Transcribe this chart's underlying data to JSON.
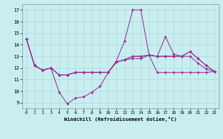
{
  "xlabel": "Windchill (Refroidissement éolien,°C)",
  "bg_color": "#c8eef0",
  "line_color": "#993399",
  "grid_color": "#b0d8d8",
  "x_ticks": [
    0,
    1,
    2,
    3,
    4,
    5,
    6,
    7,
    8,
    9,
    10,
    11,
    12,
    13,
    14,
    15,
    16,
    17,
    18,
    19,
    20,
    21,
    22,
    23
  ],
  "ylim": [
    8.5,
    17.5
  ],
  "yticks": [
    9,
    10,
    11,
    12,
    13,
    14,
    15,
    16,
    17
  ],
  "line1": [
    14.5,
    12.2,
    11.8,
    12.0,
    9.9,
    8.9,
    9.4,
    9.5,
    9.9,
    10.4,
    11.6,
    12.6,
    14.3,
    17.0,
    17.0,
    13.1,
    13.0,
    14.7,
    13.2,
    13.0,
    13.4,
    12.8,
    12.2,
    11.7
  ],
  "line2": [
    14.5,
    12.2,
    11.8,
    12.0,
    11.4,
    11.4,
    11.6,
    11.6,
    11.6,
    11.6,
    11.6,
    12.5,
    12.7,
    12.8,
    12.8,
    13.1,
    11.6,
    11.6,
    11.6,
    11.6,
    11.6,
    11.6,
    11.6,
    11.7
  ],
  "line3": [
    14.5,
    12.2,
    11.8,
    12.0,
    11.4,
    11.4,
    11.6,
    11.6,
    11.6,
    11.6,
    11.6,
    12.5,
    12.7,
    13.0,
    13.0,
    13.1,
    13.0,
    13.0,
    13.0,
    13.0,
    13.4,
    12.8,
    12.2,
    11.7
  ],
  "line4": [
    14.5,
    12.2,
    11.8,
    12.0,
    11.4,
    11.4,
    11.6,
    11.6,
    11.6,
    11.6,
    11.6,
    12.5,
    12.7,
    13.0,
    13.0,
    13.1,
    13.0,
    13.0,
    13.0,
    13.0,
    13.0,
    12.4,
    11.9,
    11.7
  ]
}
